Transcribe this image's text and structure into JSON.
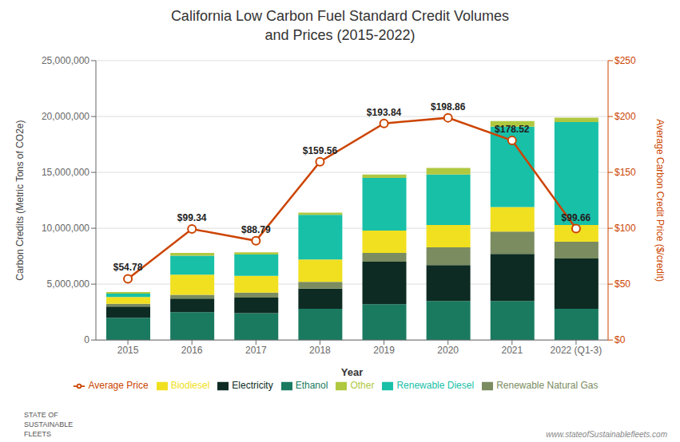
{
  "chart_data": {
    "type": "bar",
    "title": "California Low Carbon Fuel Standard Credit Volumes\nand Prices (2015-2022)",
    "x_label": "Year",
    "y_label": "Carbon Credits (Metric Tons of CO2e)",
    "y2_label": "Average Carbon Credit Price ($/credit)",
    "categories": [
      "2015",
      "2016",
      "2017",
      "2018",
      "2019",
      "2020",
      "2021",
      "2022 (Q1-3)"
    ],
    "stacked": true,
    "grid": true,
    "legend": "bottom",
    "ylim": [
      0,
      25000000
    ],
    "yticks": [
      0,
      {
        "value": 5000000,
        "label": "5,000,000"
      },
      {
        "value": 10000000,
        "label": "10,000,000"
      },
      {
        "value": 15000000,
        "label": "15,000,000"
      },
      {
        "value": 20000000,
        "label": "20,000,000"
      },
      {
        "value": 25000000,
        "label": "25,000,000"
      }
    ],
    "y2lim": [
      0,
      250
    ],
    "y2ticks": [
      {
        "value": 0,
        "label": "$0"
      },
      {
        "value": 50,
        "label": "$50"
      },
      {
        "value": 100,
        "label": "$100"
      },
      {
        "value": 150,
        "label": "$150"
      },
      {
        "value": 200,
        "label": "$200"
      },
      {
        "value": 250,
        "label": "$250"
      }
    ],
    "series": [
      {
        "name": "Ethanol",
        "type": "bar",
        "color": "#1a7a60",
        "values": [
          2000000,
          2500000,
          2400000,
          2800000,
          3200000,
          3500000,
          3500000,
          2800000
        ]
      },
      {
        "name": "Electricity",
        "type": "bar",
        "color": "#0d2b22",
        "values": [
          1000000,
          1200000,
          1400000,
          1800000,
          3800000,
          3200000,
          4200000,
          4500000
        ]
      },
      {
        "name": "Renewable Natural Gas",
        "type": "bar",
        "color": "#7a8c60",
        "values": [
          250000,
          350000,
          450000,
          600000,
          800000,
          1600000,
          2000000,
          1500000
        ]
      },
      {
        "name": "Biodiesel",
        "type": "bar",
        "color": "#f0e020",
        "values": [
          600000,
          1800000,
          1500000,
          2000000,
          2000000,
          2000000,
          2200000,
          1500000
        ]
      },
      {
        "name": "Renewable Diesel",
        "type": "bar",
        "color": "#18c0a8",
        "values": [
          300000,
          1700000,
          1900000,
          4000000,
          4700000,
          4500000,
          7200000,
          9200000
        ]
      },
      {
        "name": "Other",
        "type": "bar",
        "color": "#b0c840",
        "values": [
          150000,
          250000,
          200000,
          200000,
          300000,
          600000,
          500000,
          400000
        ]
      },
      {
        "name": "Average Price",
        "type": "line",
        "axis": "y2",
        "color": "#cc4400",
        "marker": "o",
        "data_labels": true,
        "values": [
          54.78,
          99.34,
          88.79,
          159.56,
          193.84,
          198.86,
          178.52,
          99.66
        ],
        "value_labels": [
          "$54.78",
          "$99.34",
          "$88.79",
          "$159.56",
          "$193.84",
          "$198.86",
          "$178.52",
          "$99.66"
        ]
      }
    ],
    "annotations": [
      "STATE OF\nSUSTAINABLE\nFLEETS",
      "www.stateofSustainablefleets.com"
    ]
  }
}
